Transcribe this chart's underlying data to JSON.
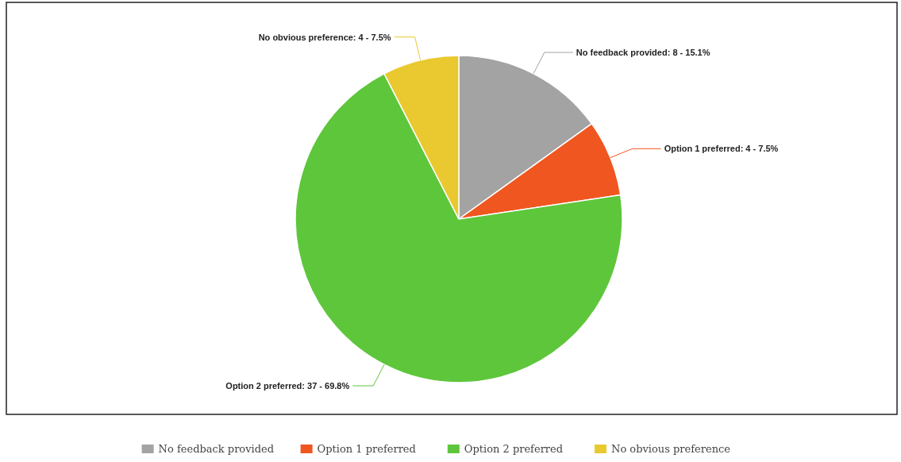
{
  "chart_data": {
    "type": "pie",
    "categories": [
      "No feedback provided",
      "Option 1 preferred",
      "Option 2 preferred",
      "No obvious preference"
    ],
    "values": [
      8,
      4,
      37,
      4
    ],
    "colors": [
      "#a3a3a3",
      "#f0561f",
      "#5ec63b",
      "#e9c92f"
    ],
    "value_labels": [
      "No feedback provided: 8 - 15.1%",
      "Option 1 preferred: 4 - 7.5%",
      "Option 2 preferred: 37 - 69.8%",
      "No obvious preference: 4 - 7.5%"
    ],
    "legend": "bottom"
  }
}
